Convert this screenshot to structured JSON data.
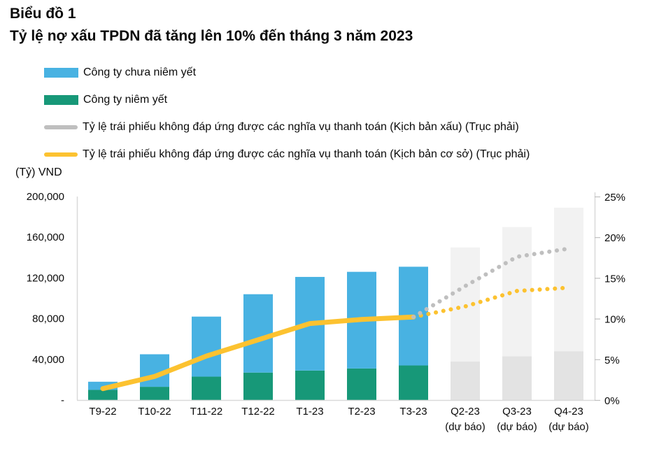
{
  "header": {
    "title_line1": "Biểu đồ 1",
    "title_line2": "Tỷ lệ nợ xấu TPDN đã tăng lên 10% đến tháng 3 năm 2023"
  },
  "legend": {
    "items": [
      {
        "label": "Công ty chưa niêm yết",
        "color": "#48B2E2",
        "type": "bar"
      },
      {
        "label": "Công ty niêm yết",
        "color": "#179878",
        "type": "bar"
      },
      {
        "label": "Tỷ lệ trái phiếu không đáp ứng được các nghĩa vụ thanh toán (Kịch bản xấu) (Trục phải)",
        "color": "#BFBFBF",
        "type": "line"
      },
      {
        "label": "Tỷ lệ trái phiếu không đáp ứng được các nghĩa vụ thanh toán (Kịch bản cơ sở) (Trục phải)",
        "color": "#FCC230",
        "type": "line"
      }
    ]
  },
  "chart_data": {
    "type": "bar",
    "categories": [
      "T9-22",
      "T10-22",
      "T11-22",
      "T12-22",
      "T1-23",
      "T2-23",
      "T3-23",
      "Q2-23",
      "Q3-23",
      "Q4-23"
    ],
    "category_sublabels": [
      "",
      "",
      "",
      "",
      "",
      "",
      "",
      "(dự báo)",
      "(dự báo)",
      "(dự báo)"
    ],
    "left_axis": {
      "label": "(Tỷ) VND",
      "max": 200000,
      "ticks": [
        "200,000",
        "160,000",
        "120,000",
        "80,000",
        "40,000",
        "-"
      ]
    },
    "right_axis": {
      "max": 25,
      "ticks": [
        "25%",
        "20%",
        "15%",
        "10%",
        "5%",
        "0%"
      ]
    },
    "bar_series": [
      {
        "name": "Công ty niêm yết",
        "color": "#179878",
        "values": [
          10000,
          13000,
          23000,
          27000,
          29000,
          31000,
          34000,
          null,
          null,
          null
        ]
      },
      {
        "name": "Công ty chưa niêm yết",
        "color": "#48B2E2",
        "values": [
          8000,
          32000,
          59000,
          77000,
          92000,
          95000,
          97000,
          null,
          null,
          null
        ]
      },
      {
        "name": "Dự báo (phần dưới)",
        "color": "#E3E3E3",
        "values": [
          null,
          null,
          null,
          null,
          null,
          null,
          null,
          38000,
          43000,
          48000
        ]
      },
      {
        "name": "Dự báo (phần trên)",
        "color": "#F2F2F2",
        "values": [
          null,
          null,
          null,
          null,
          null,
          null,
          null,
          112000,
          127000,
          141000
        ]
      }
    ],
    "line_series": [
      {
        "name": "Tỷ lệ trái phiếu không đáp ứng được các nghĩa vụ thanh toán (Kịch bản cơ sở) (Trục phải)",
        "color": "#FCC230",
        "style": "solid",
        "values": [
          1.4,
          2.9,
          5.4,
          7.4,
          9.4,
          9.9,
          10.2,
          null,
          null,
          null
        ]
      },
      {
        "name": "Kịch bản cơ sở - dự báo",
        "color": "#FCC230",
        "style": "dotted",
        "values": [
          null,
          null,
          null,
          null,
          null,
          null,
          10.2,
          11.5,
          13.4,
          13.8
        ]
      },
      {
        "name": "Tỷ lệ trái phiếu không đáp ứng được các nghĩa vụ thanh toán (Kịch bản xấu) (Trục phải)",
        "color": "#BFBFBF",
        "style": "dotted",
        "values": [
          null,
          null,
          null,
          null,
          null,
          null,
          10.2,
          14.0,
          17.6,
          18.6
        ]
      }
    ]
  }
}
